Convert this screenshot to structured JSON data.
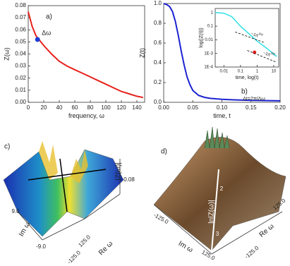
{
  "chart_data": [
    {
      "type": "line",
      "panel_label": "a)",
      "xlabel": "frequency, ω",
      "ylabel": "Z(ω)",
      "x": [
        0,
        5,
        10,
        20,
        30,
        40,
        50,
        60,
        70,
        80,
        90,
        100,
        110,
        120,
        130,
        140,
        148
      ],
      "series": [
        {
          "color": "#e8201c",
          "values": [
            0.075,
            0.063,
            0.055,
            0.047,
            0.04,
            0.034,
            0.03,
            0.027,
            0.024,
            0.021,
            0.018,
            0.015,
            0.012,
            0.009,
            0.007,
            0.005,
            0.004
          ]
        }
      ],
      "markers": [
        {
          "x": 12,
          "y": 0.052,
          "color": "#1a3fd6",
          "label": "Δω"
        }
      ],
      "xlim": [
        0,
        150
      ],
      "xticks": [
        0,
        20,
        40,
        60,
        80,
        100,
        120,
        140
      ],
      "ylim": [
        0,
        0.08
      ],
      "yticks": [
        {
          "value": 0,
          "label": "0.00"
        },
        0.01,
        0.02,
        0.03,
        0.04,
        0.05,
        0.06,
        0.07,
        0.08
      ]
    },
    {
      "type": "line",
      "panel_label": "b)",
      "xlabel": "time, t",
      "ylabel": "Z(t)",
      "annotation": "Δt=2π/Δω",
      "x": [
        0,
        0.005,
        0.01,
        0.015,
        0.02,
        0.025,
        0.03,
        0.035,
        0.04,
        0.045,
        0.05,
        0.06,
        0.07,
        0.08,
        0.1,
        0.12,
        0.15,
        0.2
      ],
      "series": [
        {
          "color": "#1c23d0",
          "values": [
            1.0,
            0.99,
            0.97,
            0.92,
            0.82,
            0.68,
            0.52,
            0.38,
            0.26,
            0.18,
            0.12,
            0.07,
            0.05,
            0.04,
            0.03,
            0.025,
            0.02,
            0.015
          ]
        }
      ],
      "xlim": [
        0,
        0.2
      ],
      "xticks": [
        {
          "value": 0,
          "label": "0.00"
        },
        0.05,
        {
          "value": 0.1,
          "label": "0.10"
        },
        0.15,
        {
          "value": 0.2,
          "label": "0.20"
        }
      ],
      "ylim": [
        0,
        1
      ],
      "yticks": [
        {
          "value": 0,
          "label": "0.0"
        },
        0.2,
        0.4,
        0.6,
        0.8,
        {
          "value": 1,
          "label": "1.0"
        }
      ]
    },
    {
      "type": "line",
      "xscale": "log",
      "yscale": "log",
      "xlabel": "time, log(t)",
      "ylabel": "log(|Z(t)|)",
      "x": [
        0.003,
        0.01,
        0.03,
        0.05,
        0.1,
        0.3,
        1,
        3,
        10,
        15
      ],
      "series": [
        {
          "color": "#2ee0e6",
          "values": [
            1,
            0.9,
            0.5,
            0.25,
            0.1,
            0.03,
            0.008,
            0.003,
            0.0009,
            0.0006
          ]
        }
      ],
      "markers": [
        {
          "x": 0.7,
          "y": 0.0012,
          "color": "#e8201c"
        }
      ],
      "annotations": [
        {
          "text": "~1/t",
          "sup": "3/4"
        },
        {
          "text": "~1/t",
          "sup": "3/2"
        }
      ],
      "xlim": [
        0.003,
        20
      ],
      "xticks": [
        0.01,
        0.1,
        1,
        10
      ],
      "ylim": [
        0.0001,
        2
      ],
      "yticks": [
        {
          "value": 0.0001,
          "label": "1E-4"
        },
        {
          "value": 0.001,
          "label": "1E-3"
        },
        0.01,
        0.1,
        1
      ]
    },
    {
      "type": "surface",
      "panel_label": "c)",
      "labels": [
        "|Z(ω)|",
        "0.08",
        "Im ω",
        "9.0",
        "-9.0",
        "125.0",
        "-125.0",
        "Re ω"
      ]
    },
    {
      "type": "surface",
      "panel_label": "d)",
      "labels": [
        "ln|Z(ω)|",
        "2",
        "3",
        "Im ω",
        "-125.0",
        "125.0",
        "Re ω",
        "-125.0",
        "125.0"
      ]
    }
  ]
}
